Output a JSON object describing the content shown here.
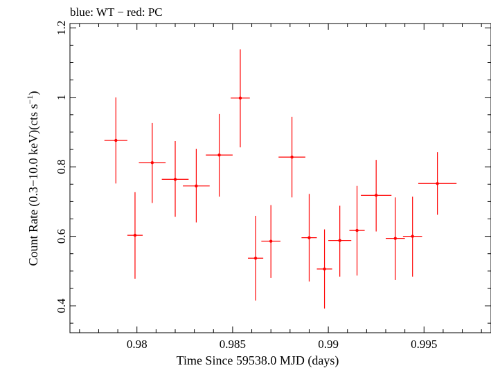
{
  "chart_data": {
    "type": "scatter",
    "title": "blue: WT − red: PC",
    "xlabel": "Time Since 59538.0 MJD (days)",
    "ylabel_main": "Count Rate (0.3−10.0 keV)(cts s",
    "ylabel_sup": "−1",
    "ylabel_end": ")",
    "xlim": [
      0.9765,
      0.9985
    ],
    "ylim": [
      0.3225,
      1.2125
    ],
    "xticks": [
      0.98,
      0.985,
      0.99,
      0.995
    ],
    "xtick_labels": [
      "0.98",
      "0.985",
      "0.99",
      "0.995"
    ],
    "yticks": [
      0.4,
      0.6,
      0.8,
      1.0,
      1.2
    ],
    "ytick_labels": [
      "0.4",
      "0.6",
      "0.8",
      "1",
      "1.2"
    ],
    "grid": false,
    "legend": "none",
    "series": [
      {
        "color": "#ff0000",
        "points": [
          {
            "x": 0.9789,
            "xerr": 0.0006,
            "y": 0.876,
            "yerr_low": 0.124,
            "yerr_high": 0.124
          },
          {
            "x": 0.9799,
            "xerr": 0.0004,
            "y": 0.603,
            "yerr_low": 0.125,
            "yerr_high": 0.124
          },
          {
            "x": 0.9808,
            "xerr": 0.0007,
            "y": 0.812,
            "yerr_low": 0.116,
            "yerr_high": 0.114
          },
          {
            "x": 0.982,
            "xerr": 0.0007,
            "y": 0.764,
            "yerr_low": 0.108,
            "yerr_high": 0.11
          },
          {
            "x": 0.9831,
            "xerr": 0.0007,
            "y": 0.745,
            "yerr_low": 0.105,
            "yerr_high": 0.107
          },
          {
            "x": 0.9843,
            "xerr": 0.0007,
            "y": 0.834,
            "yerr_low": 0.12,
            "yerr_high": 0.118
          },
          {
            "x": 0.9854,
            "xerr": 0.0005,
            "y": 0.998,
            "yerr_low": 0.142,
            "yerr_high": 0.14
          },
          {
            "x": 0.9862,
            "xerr": 0.0004,
            "y": 0.537,
            "yerr_low": 0.122,
            "yerr_high": 0.122
          },
          {
            "x": 0.987,
            "xerr": 0.0005,
            "y": 0.586,
            "yerr_low": 0.106,
            "yerr_high": 0.104
          },
          {
            "x": 0.9881,
            "xerr": 0.0007,
            "y": 0.828,
            "yerr_low": 0.116,
            "yerr_high": 0.116
          },
          {
            "x": 0.989,
            "xerr": 0.0004,
            "y": 0.596,
            "yerr_low": 0.126,
            "yerr_high": 0.126
          },
          {
            "x": 0.9898,
            "xerr": 0.0004,
            "y": 0.506,
            "yerr_low": 0.114,
            "yerr_high": 0.114
          },
          {
            "x": 0.9906,
            "xerr": 0.0006,
            "y": 0.588,
            "yerr_low": 0.104,
            "yerr_high": 0.1
          },
          {
            "x": 0.9915,
            "xerr": 0.0004,
            "y": 0.617,
            "yerr_low": 0.13,
            "yerr_high": 0.128
          },
          {
            "x": 0.9925,
            "xerr": 0.0008,
            "y": 0.718,
            "yerr_low": 0.104,
            "yerr_high": 0.102
          },
          {
            "x": 0.9935,
            "xerr": 0.0005,
            "y": 0.594,
            "yerr_low": 0.12,
            "yerr_high": 0.118
          },
          {
            "x": 0.9944,
            "xerr": 0.0005,
            "y": 0.6,
            "yerr_low": 0.116,
            "yerr_high": 0.114
          },
          {
            "x": 0.9957,
            "xerr": 0.001,
            "y": 0.752,
            "yerr_low": 0.09,
            "yerr_high": 0.09
          }
        ]
      }
    ]
  }
}
